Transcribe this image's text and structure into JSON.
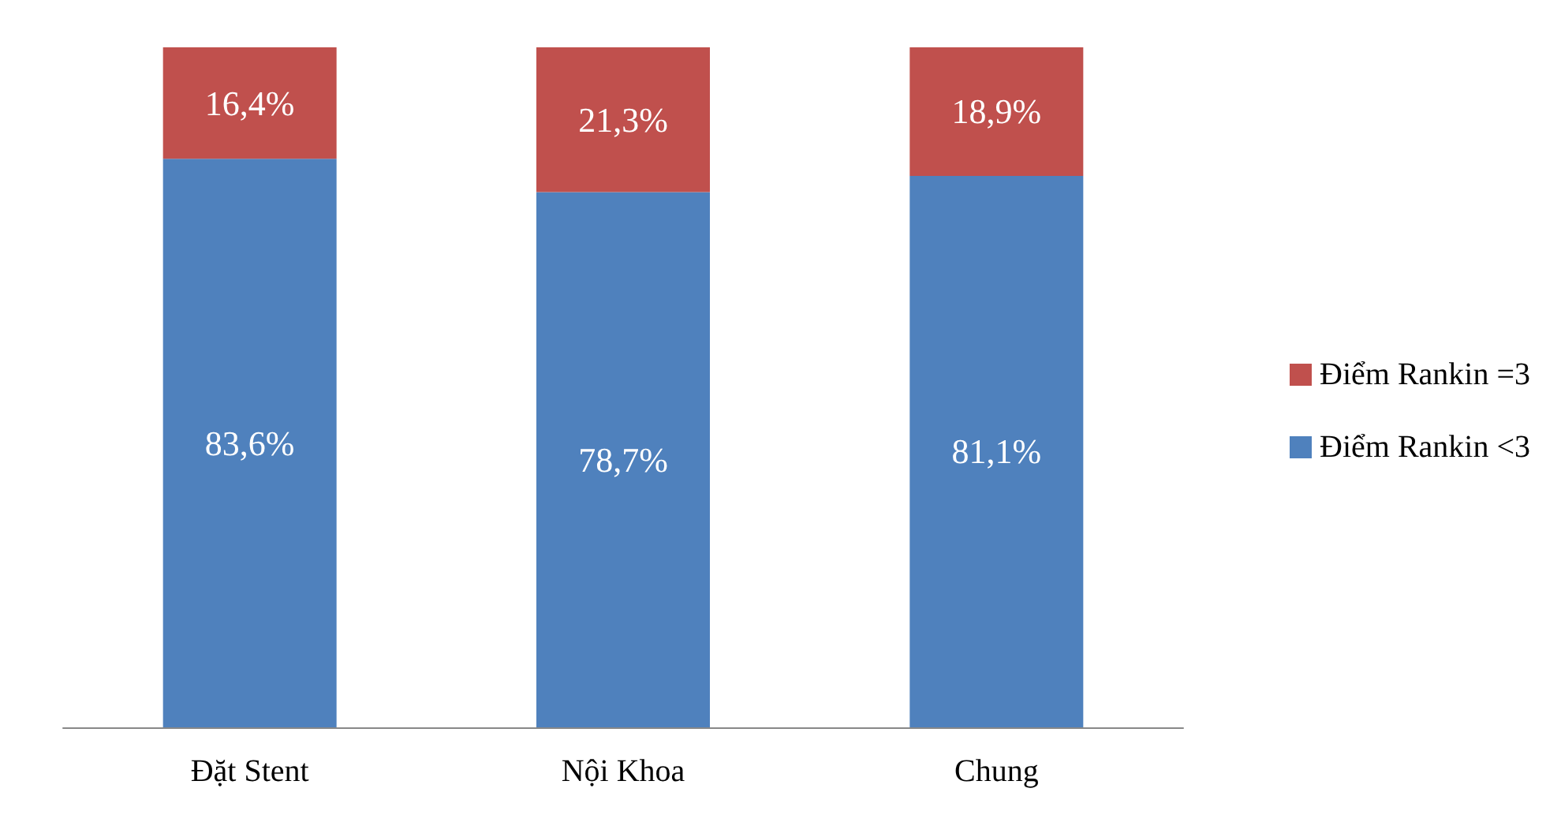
{
  "chart_data": {
    "type": "bar",
    "stacked": true,
    "categories": [
      "Đặt Stent",
      "Nội Khoa",
      "Chung"
    ],
    "series": [
      {
        "name": "Điểm Rankin <3",
        "color": "#4f81bd",
        "values": [
          83.6,
          78.7,
          81.1
        ],
        "value_labels": [
          "83,6%",
          "78,7%",
          "81,1%"
        ]
      },
      {
        "name": "Điểm Rankin =3",
        "color": "#c0504d",
        "values": [
          16.4,
          21.3,
          18.9
        ],
        "value_labels": [
          "16,4%",
          "21,3%",
          "18,9%"
        ]
      }
    ],
    "legend": "right"
  }
}
